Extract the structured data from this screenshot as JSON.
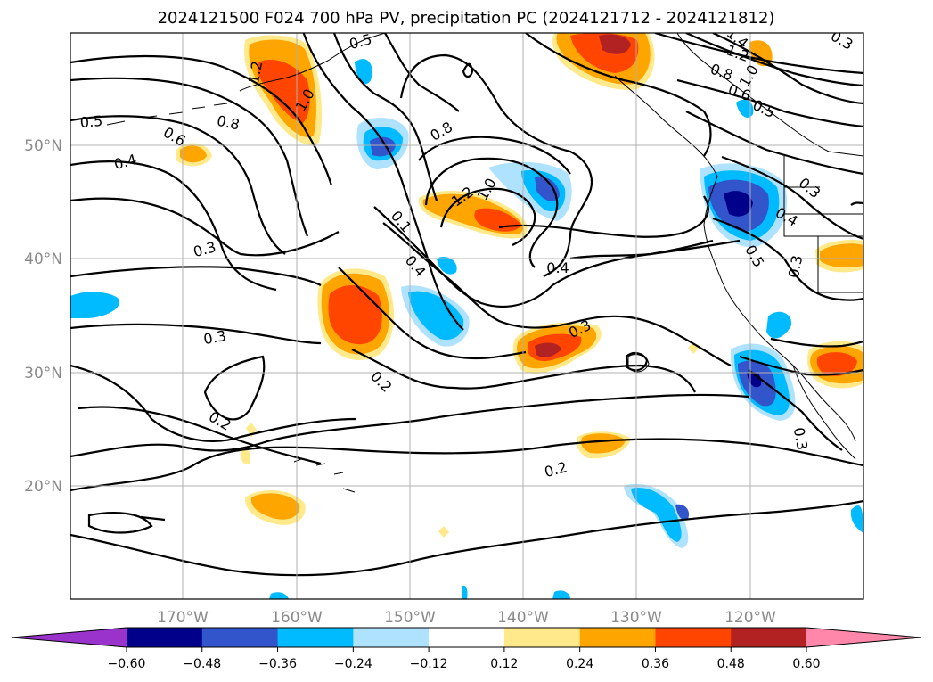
{
  "title": "2024121500 F024 700 hPa PV, precipitation PC (2024121712 - 2024121812)",
  "map": {
    "longitude_labels": [
      "170°W",
      "160°W",
      "150°W",
      "140°W",
      "130°W",
      "120°W"
    ],
    "latitude_labels": [
      "50°N",
      "40°N",
      "30°N",
      "20°N"
    ],
    "grid": true,
    "pv_contour_labels": [
      "0.5",
      "0.6",
      "0.8",
      "0.4",
      "1.2",
      "1.0",
      "0.5",
      "0.8",
      "1.2",
      "1.0",
      "0.1",
      "0.4",
      "0.3",
      "0.4",
      "0.3",
      "0.3",
      "0.2",
      "0.3",
      "0.2",
      "0.2",
      "0.3",
      "1.4",
      "1.2",
      "1.0",
      "0.8",
      "0.6",
      "0.5",
      "0.3",
      "0.4",
      "0.5",
      "0.3"
    ]
  },
  "colorbar": {
    "tick_labels": [
      "−0.60",
      "−0.48",
      "−0.36",
      "−0.24",
      "−0.12",
      "0.12",
      "0.24",
      "0.36",
      "0.48",
      "0.60"
    ],
    "colors": [
      "#9933cc",
      "#00008b",
      "#3355cc",
      "#00bbff",
      "#aee2ff",
      "#ffffff",
      "#ffe98a",
      "#ffa500",
      "#ff4500",
      "#b22222",
      "#ff88aa"
    ]
  }
}
